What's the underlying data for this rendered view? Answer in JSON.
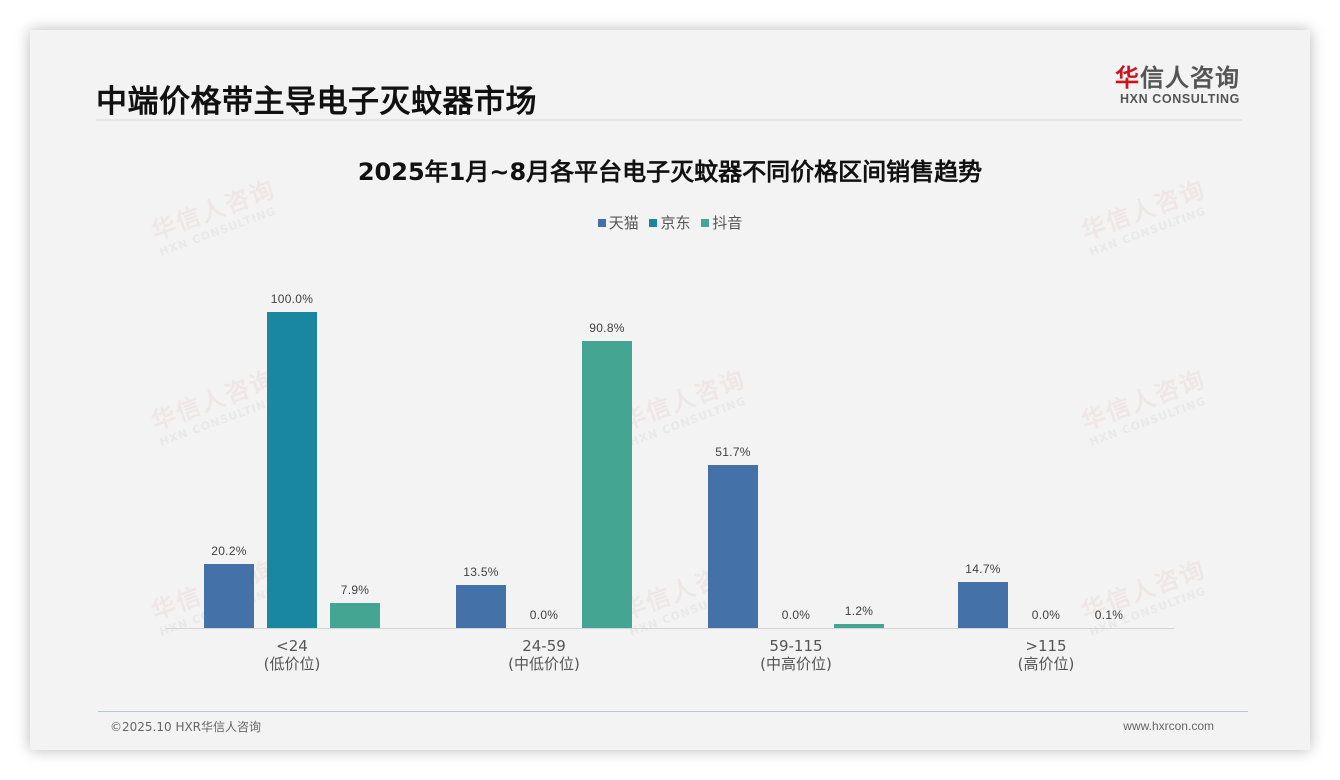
{
  "page": {
    "title": "中端价格带主导电子灭蚊器市场",
    "logo": {
      "cn_red": "华",
      "cn_rest": "信人咨询",
      "en": "HXN CONSULTING"
    },
    "footer": {
      "left": "©2025.10 HXR华信人咨询",
      "right": "www.hxrcon.com"
    },
    "watermark": {
      "cn": "华信人咨询",
      "en": "HXN CONSULTING"
    }
  },
  "colors": {
    "tmall": "#4472a8",
    "jd": "#1a87a0",
    "douyin": "#44a592"
  },
  "chart_data": {
    "type": "bar",
    "title": "2025年1月~8月各平台电子灭蚊器不同价格区间销售趋势",
    "xlabel": "",
    "ylabel": "",
    "ylim": [
      0,
      100
    ],
    "grid": false,
    "legend_position": "top",
    "categories": [
      "<24\n(低价位)",
      "24-59\n(中低价位)",
      "59-115\n(中高价位)",
      ">115\n(高价位)"
    ],
    "category_labels": [
      {
        "range": "<24",
        "tier": "(低价位)"
      },
      {
        "range": "24-59",
        "tier": "(中低价位)"
      },
      {
        "range": "59-115",
        "tier": "(中高价位)"
      },
      {
        "range": ">115",
        "tier": "(高价位)"
      }
    ],
    "series": [
      {
        "name": "天猫",
        "color": "#4472a8",
        "values": [
          20.2,
          13.5,
          51.7,
          14.7
        ],
        "labels": [
          "20.2%",
          "13.5%",
          "51.7%",
          "14.7%"
        ]
      },
      {
        "name": "京东",
        "color": "#1a87a0",
        "values": [
          100.0,
          0.0,
          0.0,
          0.0
        ],
        "labels": [
          "100.0%",
          "0.0%",
          "0.0%",
          "0.0%"
        ]
      },
      {
        "name": "抖音",
        "color": "#44a592",
        "values": [
          7.9,
          90.8,
          1.2,
          0.1
        ],
        "labels": [
          "7.9%",
          "90.8%",
          "1.2%",
          "0.1%"
        ]
      }
    ]
  }
}
